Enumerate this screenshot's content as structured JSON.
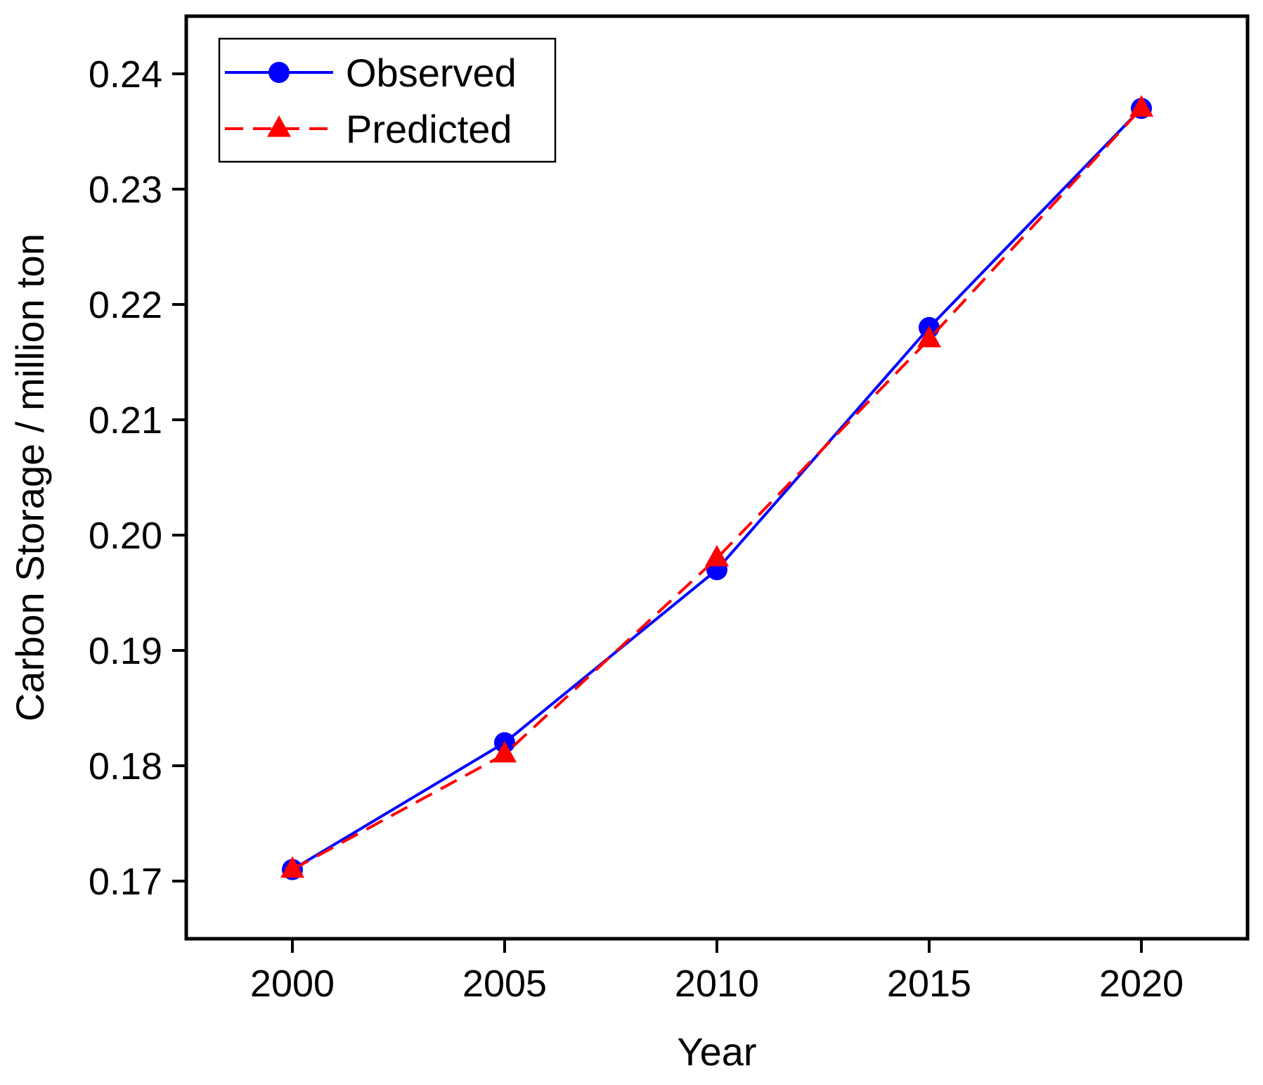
{
  "chart_data": {
    "type": "line",
    "x": [
      2000,
      2005,
      2010,
      2015,
      2020
    ],
    "xlabel": "Year",
    "ylabel": "Carbon Storage / million ton",
    "xlim": [
      1997.5,
      2022.5
    ],
    "ylim": [
      0.165,
      0.245
    ],
    "xticks": [
      2000,
      2005,
      2010,
      2015,
      2020
    ],
    "yticks": [
      0.17,
      0.18,
      0.19,
      0.2,
      0.21,
      0.22,
      0.23,
      0.24
    ],
    "ytick_labels": [
      "0.17",
      "0.18",
      "0.19",
      "0.20",
      "0.21",
      "0.22",
      "0.23",
      "0.24"
    ],
    "legend_position": "top-left",
    "grid": false,
    "series": [
      {
        "name": "Observed",
        "values": [
          0.171,
          0.182,
          0.197,
          0.218,
          0.237
        ],
        "color": "#0000ff",
        "line": "solid",
        "marker": "circle"
      },
      {
        "name": "Predicted",
        "values": [
          0.171,
          0.181,
          0.198,
          0.217,
          0.237
        ],
        "color": "#ff0000",
        "line": "dashed",
        "marker": "triangle"
      }
    ]
  }
}
